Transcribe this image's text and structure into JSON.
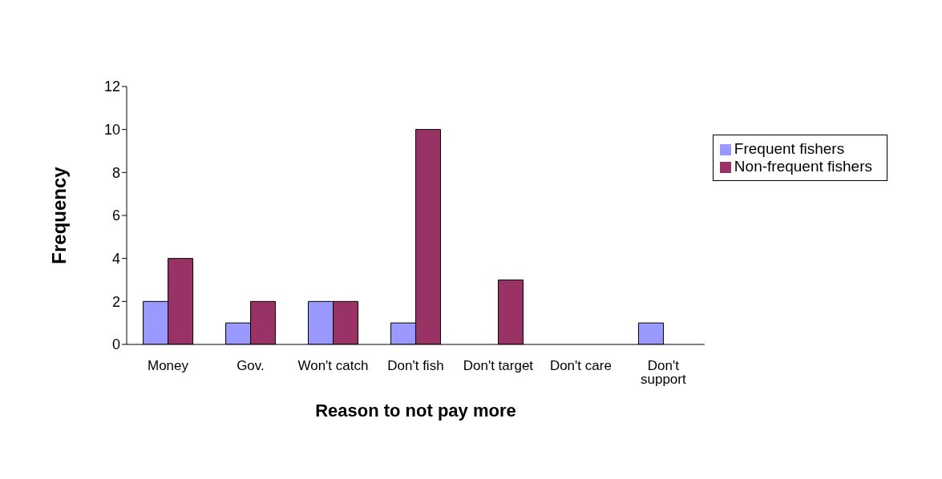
{
  "chart_data": {
    "type": "bar",
    "xlabel": "Reason to not pay more",
    "ylabel": "Frequency",
    "categories": [
      "Money",
      "Gov.",
      "Won't catch",
      "Don't fish",
      "Don't target",
      "Don't care",
      "Don't support"
    ],
    "series": [
      {
        "name": "Frequent fishers",
        "color": "#9999ff",
        "values": [
          2,
          1,
          2,
          1,
          0,
          0,
          1
        ]
      },
      {
        "name": "Non-frequent fishers",
        "color": "#993366",
        "values": [
          4,
          2,
          2,
          10,
          3,
          0,
          0
        ]
      }
    ],
    "ylim": [
      0,
      12
    ],
    "yticks": [
      0,
      2,
      4,
      6,
      8,
      10,
      12
    ],
    "grid": false,
    "legend": "right"
  }
}
